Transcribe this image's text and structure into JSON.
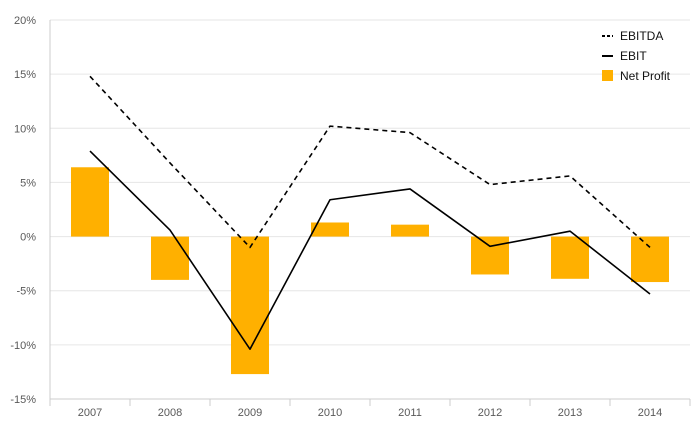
{
  "chart_data": {
    "type": "bar",
    "categories": [
      "2007",
      "2008",
      "2009",
      "2010",
      "2011",
      "2012",
      "2013",
      "2014"
    ],
    "series": [
      {
        "name": "EBITDA",
        "type": "line",
        "style": "dashed",
        "color": "#000000",
        "values": [
          14.8,
          6.8,
          -1.0,
          10.2,
          9.6,
          4.8,
          5.6,
          -1.0
        ]
      },
      {
        "name": "EBIT",
        "type": "line",
        "style": "solid",
        "color": "#000000",
        "values": [
          7.9,
          0.6,
          -10.4,
          3.4,
          4.4,
          -0.9,
          0.5,
          -5.3
        ]
      },
      {
        "name": "Net Profit",
        "type": "bar",
        "color": "#FFB000",
        "values": [
          6.4,
          -4.0,
          -12.7,
          1.3,
          1.1,
          -3.5,
          -3.9,
          -4.2
        ]
      }
    ],
    "y_ticks": [
      "20%",
      "15%",
      "10%",
      "5%",
      "0%",
      "-5%",
      "-10%",
      "-15%"
    ],
    "ylim": [
      -15,
      20
    ],
    "y_unit": "%",
    "grid": true,
    "legend_position": "top-right",
    "title": "",
    "xlabel": "",
    "ylabel": ""
  }
}
